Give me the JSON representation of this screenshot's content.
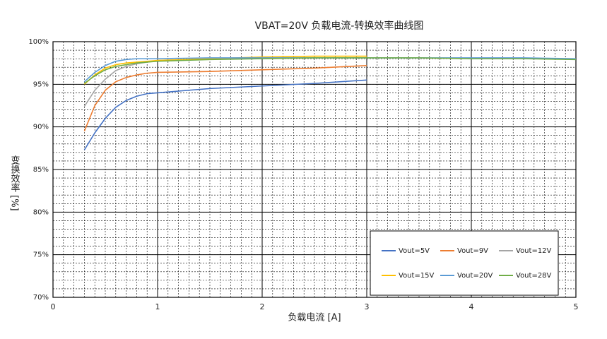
{
  "chart_data": {
    "type": "line",
    "title": "VBAT=20V 负载电流-转换效率曲线图",
    "x_label": "负载电流 [A]",
    "y_label": "变换效率 [%]",
    "x": [
      0.3,
      0.4,
      0.5,
      0.6,
      0.7,
      0.8,
      0.9,
      1,
      1.5,
      2,
      2.5,
      3,
      3.5,
      4,
      4.5,
      5
    ],
    "series": [
      {
        "name": "Vout=5V",
        "color": "#4472c4",
        "values": [
          87.3,
          89.3,
          91.0,
          92.3,
          93.1,
          93.6,
          93.9,
          94.0,
          94.5,
          94.8,
          95.1,
          95.5,
          null,
          null,
          null,
          null
        ]
      },
      {
        "name": "Vout=9V",
        "color": "#ed7d31",
        "values": [
          89.5,
          92.5,
          94.3,
          95.3,
          95.8,
          96.1,
          96.3,
          96.4,
          96.5,
          96.7,
          96.9,
          97.2,
          null,
          null,
          null,
          null
        ]
      },
      {
        "name": "Vout=12V",
        "color": "#a5a5a5",
        "values": [
          92.4,
          94.3,
          95.6,
          96.6,
          97.1,
          97.4,
          97.6,
          97.8,
          98.0,
          98.1,
          98.1,
          98.1,
          null,
          null,
          null,
          null
        ]
      },
      {
        "name": "Vout=15V",
        "color": "#ffc000",
        "values": [
          95.0,
          96.1,
          96.9,
          97.3,
          97.5,
          97.6,
          97.7,
          97.8,
          98.0,
          98.2,
          98.3,
          98.3,
          null,
          null,
          null,
          null
        ]
      },
      {
        "name": "Vout=20V",
        "color": "#5b9bd5",
        "values": [
          95.3,
          96.4,
          97.2,
          97.7,
          97.9,
          98.0,
          98.0,
          98.0,
          98.1,
          98.1,
          98.1,
          98.1,
          98.1,
          98.1,
          98.1,
          98.0
        ]
      },
      {
        "name": "Vout=28V",
        "color": "#70ad47",
        "values": [
          95.1,
          96.0,
          96.7,
          97.1,
          97.3,
          97.5,
          97.6,
          97.7,
          97.9,
          98.0,
          98.1,
          98.1,
          98.1,
          98.0,
          98.0,
          97.9
        ]
      }
    ],
    "xlim": [
      0,
      5
    ],
    "xticks": [
      0,
      1,
      2,
      3,
      4,
      5
    ],
    "ylim": [
      70,
      100
    ],
    "yticks": [
      {
        "value": 70,
        "label": "70%"
      },
      {
        "value": 75,
        "label": "75%"
      },
      {
        "value": 80,
        "label": "80%"
      },
      {
        "value": 85,
        "label": "85%"
      },
      {
        "value": 90,
        "label": "90%"
      },
      {
        "value": 95,
        "label": "95%"
      },
      {
        "value": 100,
        "label": "100%"
      }
    ],
    "grid": true,
    "minor_grid": {
      "x": 0.1,
      "y": 1
    },
    "legend": "lower right"
  }
}
